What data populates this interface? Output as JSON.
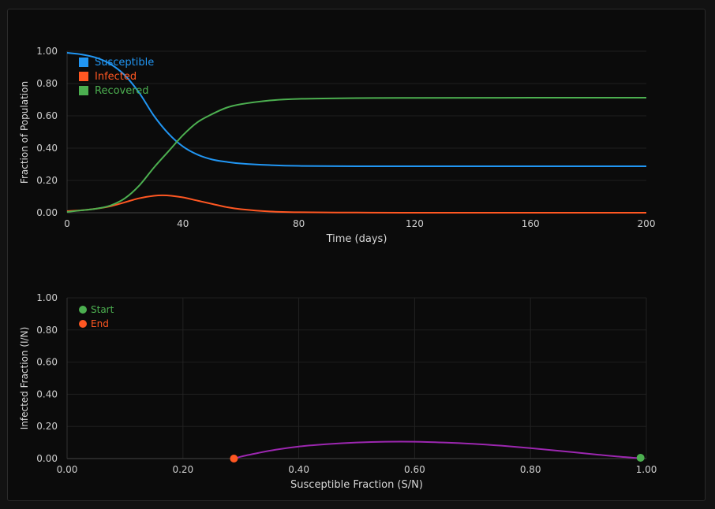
{
  "chart_data": [
    {
      "type": "line",
      "xlabel": "Time (days)",
      "ylabel": "Fraction of Population",
      "xlim": [
        0,
        200
      ],
      "ylim": [
        0,
        1
      ],
      "x_ticks": [
        "0",
        "40",
        "80",
        "120",
        "160",
        "200"
      ],
      "y_ticks": [
        "0.00",
        "0.20",
        "0.40",
        "0.60",
        "0.80",
        "1.00"
      ],
      "grid": false,
      "legend_position": "top-left",
      "series": [
        {
          "name": "Susceptible",
          "color": "#2196f3",
          "x": [
            0,
            5,
            10,
            15,
            20,
            25,
            30,
            35,
            40,
            45,
            50,
            55,
            60,
            70,
            80,
            100,
            120,
            160,
            200
          ],
          "y": [
            0.99,
            0.98,
            0.96,
            0.92,
            0.85,
            0.74,
            0.6,
            0.49,
            0.41,
            0.36,
            0.33,
            0.315,
            0.305,
            0.295,
            0.29,
            0.288,
            0.288,
            0.288,
            0.288
          ]
        },
        {
          "name": "Infected",
          "color": "#ff5722",
          "x": [
            0,
            5,
            10,
            15,
            20,
            25,
            30,
            33,
            36,
            40,
            45,
            50,
            55,
            60,
            70,
            80,
            100,
            120,
            200
          ],
          "y": [
            0.01,
            0.015,
            0.025,
            0.04,
            0.065,
            0.09,
            0.105,
            0.108,
            0.105,
            0.095,
            0.075,
            0.055,
            0.035,
            0.022,
            0.008,
            0.003,
            0.001,
            0,
            0
          ]
        },
        {
          "name": "Recovered",
          "color": "#4caf50",
          "x": [
            0,
            5,
            10,
            15,
            20,
            25,
            30,
            35,
            40,
            45,
            50,
            55,
            60,
            70,
            80,
            100,
            120,
            160,
            200
          ],
          "y": [
            0.005,
            0.015,
            0.025,
            0.045,
            0.09,
            0.17,
            0.28,
            0.38,
            0.48,
            0.56,
            0.61,
            0.65,
            0.672,
            0.695,
            0.705,
            0.71,
            0.711,
            0.712,
            0.712
          ]
        }
      ]
    },
    {
      "type": "line",
      "xlabel": "Susceptible Fraction (S/N)",
      "ylabel": "Infected Fraction (I/N)",
      "xlim": [
        0,
        1
      ],
      "ylim": [
        0,
        1
      ],
      "x_ticks": [
        "0.00",
        "0.20",
        "0.40",
        "0.60",
        "0.80",
        "1.00"
      ],
      "y_ticks": [
        "0.00",
        "0.20",
        "0.40",
        "0.60",
        "0.80",
        "1.00"
      ],
      "grid": true,
      "legend_position": "top-left",
      "series": [
        {
          "color": "#9c27b0",
          "x": [
            0.29,
            0.3,
            0.33,
            0.36,
            0.4,
            0.45,
            0.5,
            0.55,
            0.6,
            0.65,
            0.7,
            0.75,
            0.8,
            0.85,
            0.9,
            0.95,
            0.99
          ],
          "y": [
            0.0,
            0.012,
            0.035,
            0.055,
            0.075,
            0.09,
            0.1,
            0.105,
            0.105,
            0.1,
            0.092,
            0.08,
            0.065,
            0.048,
            0.03,
            0.013,
            0.002
          ]
        }
      ],
      "markers": [
        {
          "name": "Start",
          "color": "#4caf50",
          "x": 0.99,
          "y": 0.005
        },
        {
          "name": "End",
          "color": "#ff5722",
          "x": 0.288,
          "y": 0.0
        }
      ]
    }
  ]
}
